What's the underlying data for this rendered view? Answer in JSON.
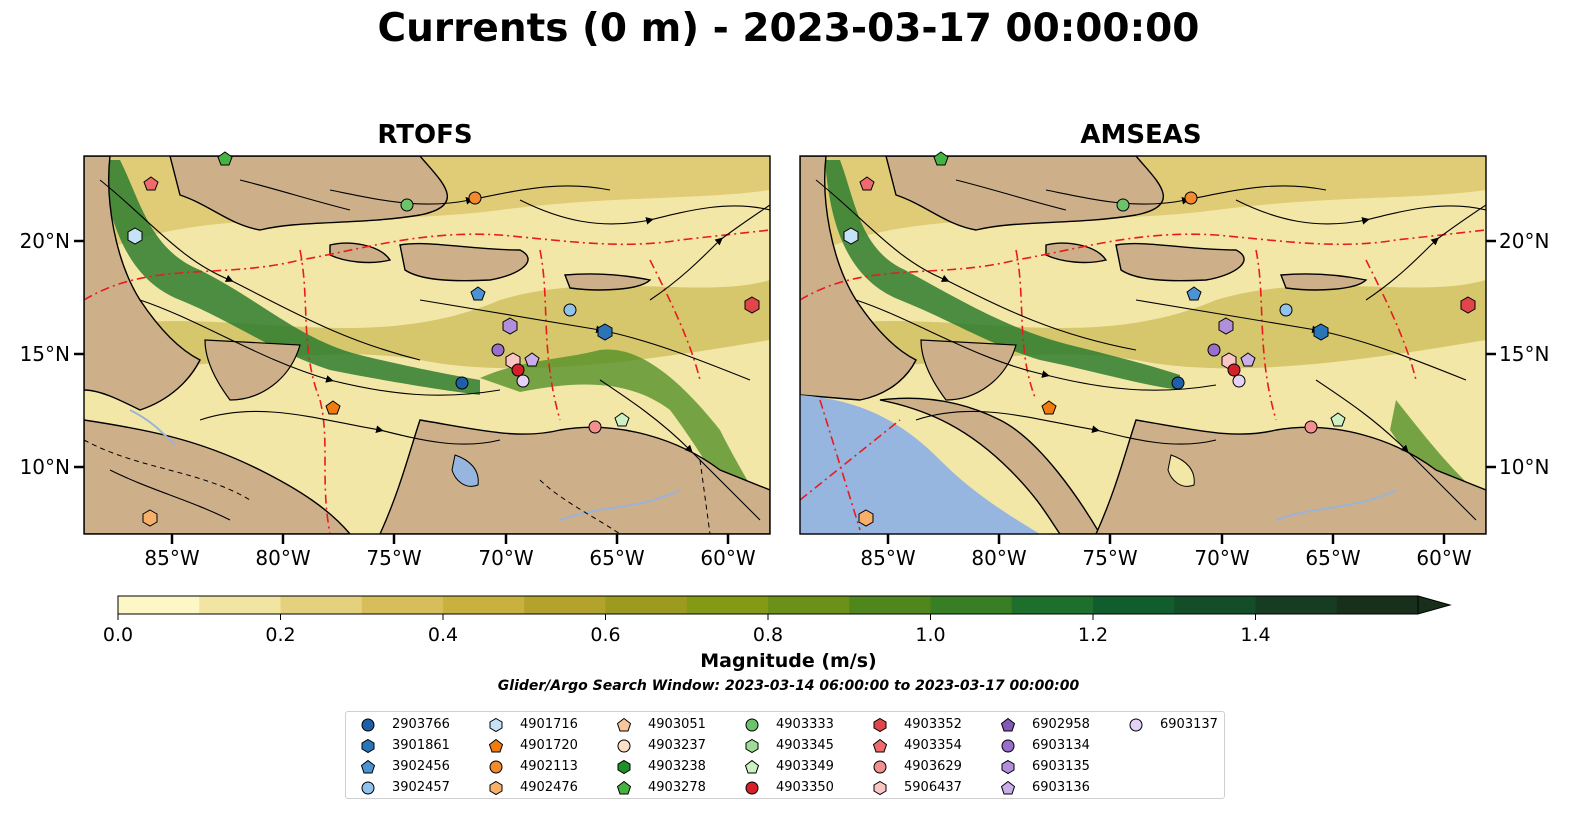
{
  "title": "Currents (0 m) - 2023-03-17 00:00:00",
  "panels": [
    {
      "name": "RTOFS"
    },
    {
      "name": "AMSEAS"
    }
  ],
  "lat_ticks": [
    "20°N",
    "15°N",
    "10°N"
  ],
  "lon_ticks": [
    "85°W",
    "80°W",
    "75°W",
    "70°W",
    "65°W",
    "60°W"
  ],
  "colorbar": {
    "label": "Magnitude (m/s)",
    "ticks": [
      "0.0",
      "0.2",
      "0.4",
      "0.6",
      "0.8",
      "1.0",
      "1.2",
      "1.4"
    ],
    "colors": [
      "#fdf7c6",
      "#f2e5a1",
      "#e5d07d",
      "#d8be5b",
      "#c9b13f",
      "#b3a22b",
      "#9c9b1f",
      "#859a14",
      "#6c9118",
      "#50871d",
      "#377e24",
      "#1e6f2c",
      "#125d2d",
      "#134e29",
      "#163d22",
      "#18301b"
    ]
  },
  "search_window": "Glider/Argo Search Window: 2023-03-14 06:00:00 to 2023-03-17 00:00:00",
  "legend": [
    {
      "id": "2903766",
      "shape": "circle",
      "color": "#1f5fa8"
    },
    {
      "id": "3901861",
      "shape": "hexagon",
      "color": "#2a74b8"
    },
    {
      "id": "3902456",
      "shape": "pentagon",
      "color": "#4c93d4"
    },
    {
      "id": "3902457",
      "shape": "circle",
      "color": "#90c2ec"
    },
    {
      "id": "4901716",
      "shape": "hexagon",
      "color": "#c6e2f7"
    },
    {
      "id": "4901720",
      "shape": "pentagon",
      "color": "#f07c10"
    },
    {
      "id": "4902113",
      "shape": "circle",
      "color": "#f38b2e"
    },
    {
      "id": "4902476",
      "shape": "hexagon",
      "color": "#f7b06a"
    },
    {
      "id": "4903051",
      "shape": "pentagon",
      "color": "#f8c89a"
    },
    {
      "id": "4903237",
      "shape": "circle",
      "color": "#fde0c6"
    },
    {
      "id": "4903238",
      "shape": "hexagon",
      "color": "#1f8f2a"
    },
    {
      "id": "4903278",
      "shape": "pentagon",
      "color": "#45b341"
    },
    {
      "id": "4903333",
      "shape": "circle",
      "color": "#6cc36a"
    },
    {
      "id": "4903345",
      "shape": "hexagon",
      "color": "#9edb96"
    },
    {
      "id": "4903349",
      "shape": "pentagon",
      "color": "#cdf1c4"
    },
    {
      "id": "4903350",
      "shape": "circle",
      "color": "#d62027"
    },
    {
      "id": "4903352",
      "shape": "hexagon",
      "color": "#e0454a"
    },
    {
      "id": "4903354",
      "shape": "pentagon",
      "color": "#ee6a6d"
    },
    {
      "id": "4903629",
      "shape": "circle",
      "color": "#f28f8f"
    },
    {
      "id": "5906437",
      "shape": "hexagon",
      "color": "#f9c6c3"
    },
    {
      "id": "6902958",
      "shape": "pentagon",
      "color": "#8459b8"
    },
    {
      "id": "6903134",
      "shape": "circle",
      "color": "#9a6fcc"
    },
    {
      "id": "6903135",
      "shape": "hexagon",
      "color": "#b18fdb"
    },
    {
      "id": "6903136",
      "shape": "pentagon",
      "color": "#c9aee9"
    },
    {
      "id": "6903137",
      "shape": "circle",
      "color": "#e4d3f6"
    }
  ],
  "colors": {
    "land": "#cdb08a",
    "ocean_pale": "#f6eeb6",
    "ocean_mid": "#c9b94a",
    "current_dark": "#1e6d2c",
    "lake": "#96b6e0",
    "border": "#e81c1c"
  }
}
